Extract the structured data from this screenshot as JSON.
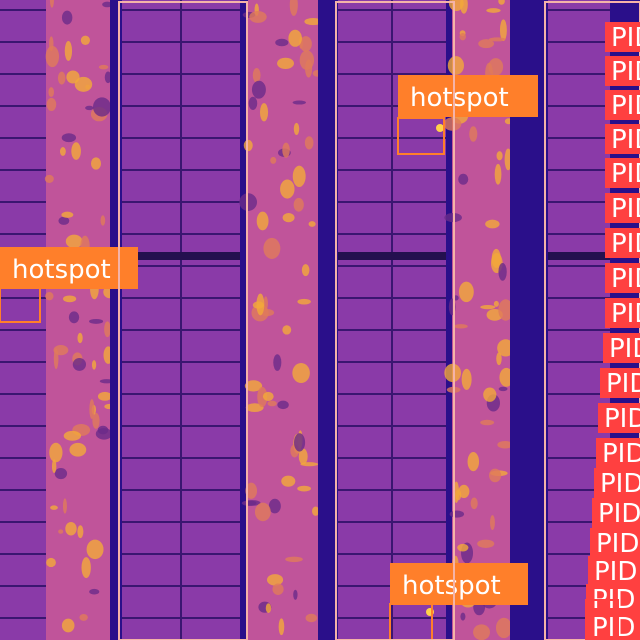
{
  "image": {
    "kind": "thermal aerial photo of solar panel rows",
    "palette": {
      "background": "#2a0f8a",
      "panel": "#8a3aa8",
      "gap": "#3a1670"
    }
  },
  "detections": [
    {
      "id": "h1",
      "label": "hotspot",
      "color": "#ff7f2a"
    },
    {
      "id": "h2",
      "label": "hotspot",
      "color": "#ff7f2a"
    },
    {
      "id": "h3",
      "label": "hotspot",
      "color": "#ff7f2a"
    },
    {
      "id": "s1",
      "label": "",
      "color": "#f5b3a8"
    },
    {
      "id": "s2",
      "label": "",
      "color": "#f5b3a8"
    },
    {
      "id": "s3",
      "label": "",
      "color": "#f5b3a8"
    },
    {
      "id": "p1",
      "label": "PID",
      "color": "#ff4040"
    },
    {
      "id": "p2",
      "label": "PID",
      "color": "#ff4040"
    },
    {
      "id": "p3",
      "label": "PID",
      "color": "#ff4040"
    },
    {
      "id": "p4",
      "label": "PID",
      "color": "#ff4040"
    },
    {
      "id": "p5",
      "label": "PID",
      "color": "#ff4040"
    },
    {
      "id": "p6",
      "label": "PID",
      "color": "#ff4040"
    },
    {
      "id": "p7",
      "label": "PID",
      "color": "#ff4040"
    },
    {
      "id": "p8",
      "label": "PID",
      "color": "#ff4040"
    },
    {
      "id": "p9",
      "label": "PID",
      "color": "#ff4040"
    },
    {
      "id": "p10",
      "label": "PID",
      "color": "#ff4040"
    },
    {
      "id": "p11",
      "label": "PID",
      "color": "#ff4040"
    },
    {
      "id": "p12",
      "label": "PID",
      "color": "#ff4040"
    },
    {
      "id": "p13",
      "label": "PID",
      "color": "#ff4040"
    },
    {
      "id": "p14",
      "label": "PID",
      "color": "#ff4040"
    },
    {
      "id": "p15",
      "label": "PID",
      "color": "#ff4040"
    },
    {
      "id": "p16",
      "label": "PID",
      "color": "#ff4040"
    },
    {
      "id": "p17",
      "label": "PID",
      "color": "#ff4040"
    },
    {
      "id": "p18",
      "label": "PID",
      "color": "#ff4040"
    },
    {
      "id": "p19",
      "label": "PID",
      "color": "#ff4040"
    }
  ]
}
